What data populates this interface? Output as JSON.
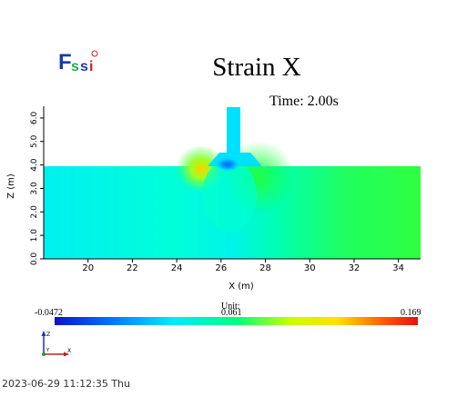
{
  "logo": {
    "text": "Fssi",
    "colors": {
      "f": "#1a3aa8",
      "s": "#2aa84a",
      "i": "#cc2222"
    }
  },
  "title": "Strain X",
  "time_label": "Time: 2.00s",
  "chart_data": {
    "type": "heatmap",
    "title": "Strain X",
    "xlabel": "X (m)",
    "ylabel": "Z (m)",
    "xlim": [
      18,
      35
    ],
    "ylim": [
      0,
      6.5
    ],
    "x_ticks": [
      "20",
      "22",
      "24",
      "26",
      "28",
      "30",
      "32",
      "34"
    ],
    "y_ticks": [
      "0.0",
      "1.0",
      "2.0",
      "3.0",
      "4.0",
      "5.0",
      "6.0"
    ],
    "grid": false
  },
  "colorbar": {
    "min_label": "-0.0472",
    "mid_label": "0.061",
    "max_label": "0.169",
    "unit_label": "Unit:",
    "colors": [
      "#1010c8",
      "#0070ff",
      "#00e8ff",
      "#00ff80",
      "#c8ff00",
      "#ffe000",
      "#ff6000",
      "#e81010"
    ]
  },
  "axes_triad": {
    "z": "Z",
    "y": "Y",
    "x": "X"
  },
  "timestamp": "2023-06-29 11:12:35 Thu"
}
